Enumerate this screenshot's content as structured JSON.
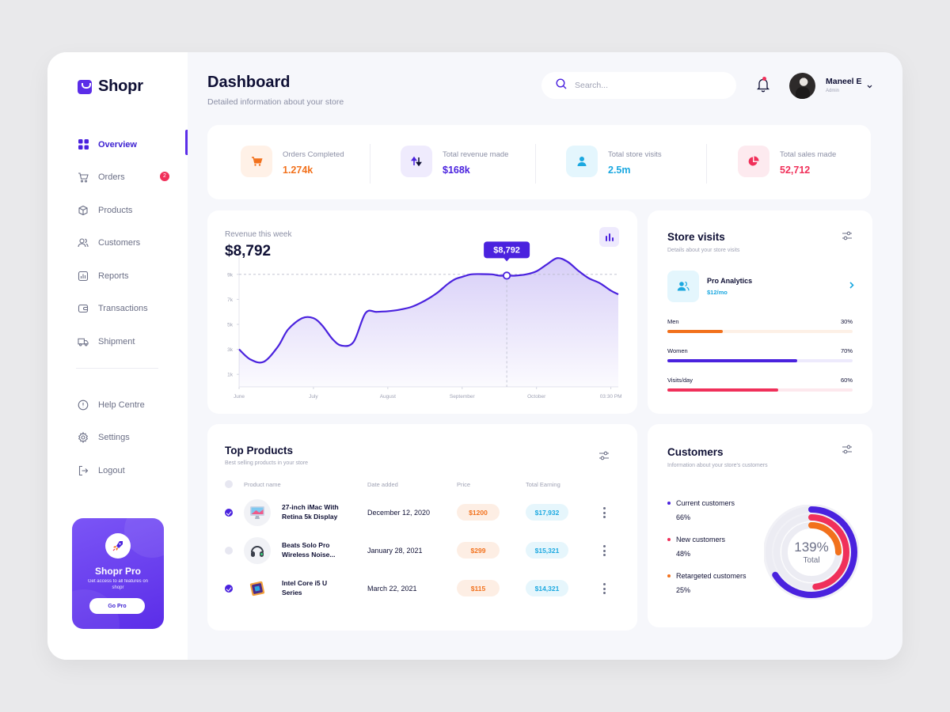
{
  "app": {
    "name": "Shopr"
  },
  "sidebar": {
    "items": [
      {
        "label": "Overview",
        "icon": "grid-icon",
        "active": true
      },
      {
        "label": "Orders",
        "icon": "cart-icon",
        "badge": "2"
      },
      {
        "label": "Products",
        "icon": "box-icon"
      },
      {
        "label": "Customers",
        "icon": "users-icon"
      },
      {
        "label": "Reports",
        "icon": "report-icon"
      },
      {
        "label": "Transactions",
        "icon": "wallet-icon"
      },
      {
        "label": "Shipment",
        "icon": "truck-icon"
      }
    ],
    "secondary": [
      {
        "label": "Help Centre",
        "icon": "info-icon"
      },
      {
        "label": "Settings",
        "icon": "gear-icon"
      },
      {
        "label": "Logout",
        "icon": "logout-icon"
      }
    ],
    "promo": {
      "title": "Shopr Pro",
      "subtitle": "Get access to all features on shopr",
      "button": "Go Pro"
    }
  },
  "header": {
    "title": "Dashboard",
    "subtitle": "Detailed information about your store",
    "search_placeholder": "Search...",
    "user": {
      "name": "Maneel E",
      "role": "Admin"
    }
  },
  "stats": [
    {
      "label": "Orders Completed",
      "value": "1.274k",
      "color": "#f2711c",
      "bg": "#fff1e7",
      "icon": "cart-icon"
    },
    {
      "label": "Total revenue made",
      "value": "$168k",
      "color": "#4a22de",
      "bg": "#efebfd",
      "icon": "sort-arrows-icon"
    },
    {
      "label": "Total store visits",
      "value": "2.5m",
      "color": "#1ba8e0",
      "bg": "#e4f6fd",
      "icon": "user-icon"
    },
    {
      "label": "Total sales made",
      "value": "52,712",
      "color": "#f0305a",
      "bg": "#fdeaef",
      "icon": "pie-icon"
    }
  ],
  "revenue": {
    "label": "Revenue this week",
    "value": "$8,792",
    "tooltip": "$8,792"
  },
  "chart_data": {
    "type": "area",
    "title": "Revenue this week",
    "y_ticks": [
      "1k",
      "3k",
      "5k",
      "7k",
      "9k"
    ],
    "ylim": [
      0,
      10
    ],
    "x_labels": [
      "June",
      "July",
      "August",
      "September",
      "October",
      "03:30 PM"
    ],
    "x": [
      0,
      0.15,
      0.33,
      0.52,
      0.66,
      0.85,
      1.0,
      1.12,
      1.26,
      1.38,
      1.54,
      1.7,
      1.85,
      2.0,
      2.14,
      2.32,
      2.5,
      2.66,
      2.8,
      2.9,
      3.0,
      3.12,
      3.26,
      3.4,
      3.5,
      3.6,
      3.72,
      3.86,
      4.0,
      4.14,
      4.28,
      4.42,
      4.56,
      4.7,
      4.85,
      5.0,
      5.1
    ],
    "y": [
      3.0,
      2.2,
      2.0,
      3.2,
      4.6,
      5.5,
      5.5,
      4.9,
      3.8,
      3.3,
      3.6,
      5.9,
      6.0,
      6.05,
      6.15,
      6.4,
      6.9,
      7.5,
      8.2,
      8.6,
      8.8,
      9.0,
      9.02,
      9.0,
      8.9,
      8.9,
      8.9,
      9.0,
      9.25,
      9.8,
      10.3,
      10.0,
      9.3,
      8.7,
      8.3,
      7.7,
      7.4
    ],
    "highlight": {
      "x": 3.6,
      "y": 8.9,
      "label": "$8,792"
    },
    "reference_line_y": 9,
    "color": "#4a22de"
  },
  "visits": {
    "title": "Store visits",
    "subtitle": "Details about your store visits",
    "promo": {
      "name": "Pro Analytics",
      "price": "$12/mo"
    },
    "bars": [
      {
        "label": "Men",
        "value": "30%",
        "fraction": 0.3,
        "color": "#f2711c",
        "track": "#fdf0e6"
      },
      {
        "label": "Women",
        "value": "70%",
        "fraction": 0.7,
        "color": "#4a22de",
        "track": "#edeafc"
      },
      {
        "label": "Visits/day",
        "value": "60%",
        "fraction": 0.6,
        "color": "#f0305a",
        "track": "#fde8ed"
      }
    ]
  },
  "products": {
    "title": "Top Products",
    "subtitle": "Best selling products in your store",
    "columns": [
      "Product name",
      "Date added",
      "Price",
      "Total Earning"
    ],
    "rows": [
      {
        "name": "27-inch iMac With Retina 5k Display",
        "date": "December 12, 2020",
        "price": "$1200",
        "earning": "$17,932",
        "checked": true,
        "icon": "imac-icon"
      },
      {
        "name": "Beats Solo Pro Wireless Noise...",
        "date": "January 28, 2021",
        "price": "$299",
        "earning": "$15,321",
        "checked": false,
        "icon": "headphones-icon"
      },
      {
        "name": "Intel Core i5 U Series",
        "date": "March 22, 2021",
        "price": "$115",
        "earning": "$14,321",
        "checked": true,
        "icon": "cpu-icon"
      }
    ]
  },
  "customers": {
    "title": "Customers",
    "subtitle": "Information about your store's customers",
    "legend": [
      {
        "label": "Current customers",
        "value": "66%",
        "fraction": 0.66,
        "color": "#4a22de"
      },
      {
        "label": "New customers",
        "value": "48%",
        "fraction": 0.48,
        "color": "#f0305a"
      },
      {
        "label": "Retargeted customers",
        "value": "25%",
        "fraction": 0.25,
        "color": "#f2711c"
      }
    ],
    "total_value": "139%",
    "total_label": "Total"
  }
}
